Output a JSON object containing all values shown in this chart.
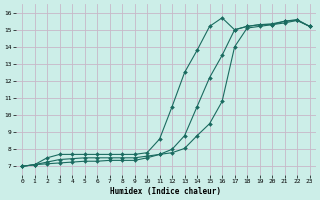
{
  "xlabel": "Humidex (Indice chaleur)",
  "bg_color": "#cceee8",
  "grid_color": "#c8b8c8",
  "line_color": "#1a6b60",
  "xlim": [
    -0.5,
    23.5
  ],
  "ylim": [
    6.5,
    16.5
  ],
  "xticks": [
    0,
    1,
    2,
    3,
    4,
    5,
    6,
    7,
    8,
    9,
    10,
    11,
    12,
    13,
    14,
    15,
    16,
    17,
    18,
    19,
    20,
    21,
    22,
    23
  ],
  "yticks": [
    7,
    8,
    9,
    10,
    11,
    12,
    13,
    14,
    15,
    16
  ],
  "line1_x": [
    0,
    1,
    2,
    3,
    4,
    5,
    6,
    7,
    8,
    9,
    10,
    11,
    12,
    13,
    14,
    15,
    16,
    17,
    18,
    19,
    20,
    21,
    22,
    23
  ],
  "line1_y": [
    7.0,
    7.1,
    7.15,
    7.2,
    7.25,
    7.3,
    7.3,
    7.35,
    7.35,
    7.35,
    7.5,
    7.7,
    8.0,
    8.8,
    10.5,
    12.2,
    13.5,
    15.0,
    15.2,
    15.3,
    15.35,
    15.5,
    15.6,
    15.2
  ],
  "line2_x": [
    0,
    1,
    2,
    3,
    4,
    5,
    6,
    7,
    8,
    9,
    10,
    11,
    12,
    13,
    14,
    15,
    16,
    17,
    18,
    19,
    20,
    21,
    22,
    23
  ],
  "line2_y": [
    7.0,
    7.1,
    7.25,
    7.4,
    7.45,
    7.5,
    7.5,
    7.5,
    7.5,
    7.5,
    7.6,
    7.7,
    7.8,
    8.05,
    8.8,
    9.5,
    10.8,
    14.0,
    15.1,
    15.2,
    15.3,
    15.4,
    15.55,
    15.2
  ],
  "line3_x": [
    0,
    1,
    2,
    3,
    4,
    5,
    6,
    7,
    8,
    9,
    10,
    11,
    12,
    13,
    14,
    15,
    16,
    17,
    18,
    19,
    20,
    21,
    22,
    23
  ],
  "line3_y": [
    7.0,
    7.1,
    7.5,
    7.7,
    7.7,
    7.7,
    7.7,
    7.7,
    7.7,
    7.7,
    7.8,
    8.6,
    10.5,
    12.5,
    13.8,
    15.2,
    15.7,
    15.0,
    15.2,
    15.3,
    15.3,
    15.5,
    15.55,
    15.2
  ]
}
